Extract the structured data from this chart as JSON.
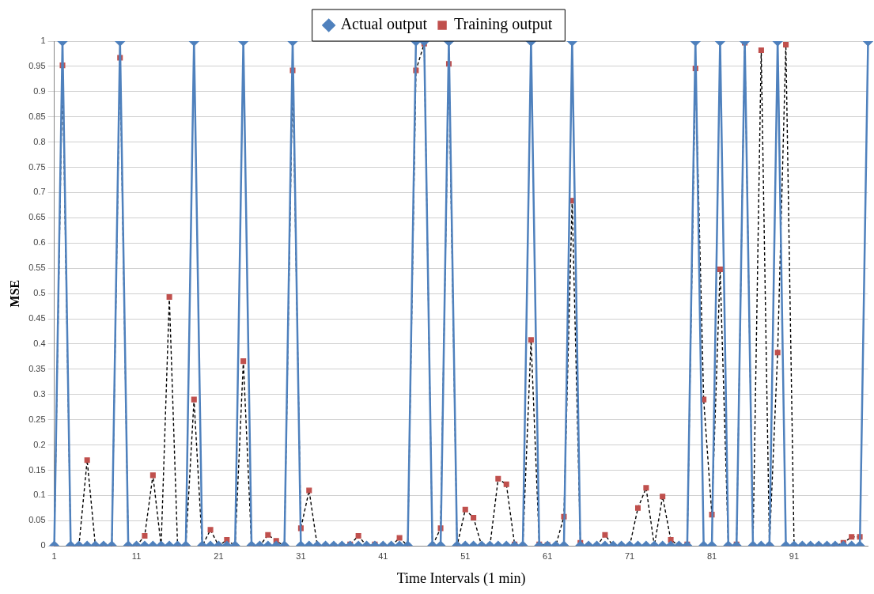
{
  "chart_data": {
    "type": "line",
    "xlabel": "Time Intervals (1 min)",
    "ylabel": "MSE",
    "categories": [
      "1",
      null,
      null,
      null,
      null,
      null,
      null,
      null,
      null,
      null,
      "11",
      null,
      null,
      null,
      null,
      null,
      null,
      null,
      null,
      null,
      "21",
      null,
      null,
      null,
      null,
      null,
      null,
      null,
      null,
      null,
      "31",
      null,
      null,
      null,
      null,
      null,
      null,
      null,
      null,
      null,
      "41",
      null,
      null,
      null,
      null,
      null,
      null,
      null,
      null,
      null,
      "51",
      null,
      null,
      null,
      null,
      null,
      null,
      null,
      null,
      null,
      "61",
      null,
      null,
      null,
      null,
      null,
      null,
      null,
      null,
      null,
      "71",
      null,
      null,
      null,
      null,
      null,
      null,
      null,
      null,
      null,
      "81",
      null,
      null,
      null,
      null,
      null,
      null,
      null,
      null,
      null,
      "91",
      null,
      null,
      null,
      null,
      null,
      null,
      null,
      null,
      null
    ],
    "series": [
      {
        "name": "Actual output",
        "color": "#4f81bd",
        "marker": "diamond",
        "line_style": "solid",
        "values": [
          0,
          1,
          0,
          0,
          0,
          0,
          0,
          0,
          1,
          0,
          0,
          0,
          0,
          0,
          0,
          0,
          0,
          1,
          0,
          0,
          0,
          0,
          0,
          1,
          0,
          0,
          0,
          0,
          0,
          1,
          0,
          0,
          0,
          0,
          0,
          0,
          0,
          0,
          0,
          0,
          0,
          0,
          0,
          0,
          1,
          1,
          0,
          0,
          1,
          0,
          0,
          0,
          0,
          0,
          0,
          0,
          0,
          0,
          1,
          0,
          0,
          0,
          0,
          1,
          0,
          0,
          0,
          0,
          0,
          0,
          0,
          0,
          0,
          0,
          0,
          0,
          0,
          0,
          1,
          0,
          0,
          1,
          0,
          0,
          1,
          0,
          0,
          0,
          1,
          0,
          0,
          0,
          0,
          0,
          0,
          0,
          0,
          0,
          0,
          1
        ]
      },
      {
        "name": "Training output",
        "color": "#c0504d",
        "marker": "square",
        "line_style": "dashed",
        "values": [
          0,
          0.952,
          0,
          0,
          0.17,
          0,
          0,
          0,
          0.967,
          0,
          0,
          0.02,
          0.14,
          0,
          0.493,
          0,
          0,
          0.29,
          0,
          0.032,
          0,
          0.012,
          0,
          0.366,
          0,
          0,
          0.022,
          0.01,
          0,
          0.942,
          0.035,
          0.11,
          0,
          0,
          0,
          0,
          0.003,
          0.02,
          0,
          0.003,
          0,
          0,
          0.016,
          0,
          0.942,
          0.995,
          0,
          0.035,
          0.955,
          0,
          0.072,
          0.056,
          0,
          0,
          0.133,
          0.122,
          0.003,
          0,
          0.408,
          0.003,
          0.002,
          0,
          0.058,
          0.684,
          0.006,
          0,
          0,
          0.022,
          0,
          0,
          0,
          0.075,
          0.115,
          0,
          0.098,
          0.012,
          0,
          0.003,
          0.946,
          0.29,
          0.062,
          0.548,
          0,
          0.003,
          0.997,
          0,
          0.982,
          0,
          0.383,
          0.993,
          0,
          0,
          0,
          0,
          0,
          0,
          0.006,
          0.018,
          0.018,
          null
        ]
      }
    ],
    "ylim": [
      0,
      1
    ],
    "yticks": [
      0,
      0.05,
      0.1,
      0.15,
      0.2,
      0.25,
      0.3,
      0.35,
      0.4,
      0.45,
      0.5,
      0.55,
      0.6,
      0.65,
      0.7,
      0.75,
      0.8,
      0.85,
      0.9,
      0.95,
      1
    ],
    "grid": "y",
    "legend": "top"
  }
}
